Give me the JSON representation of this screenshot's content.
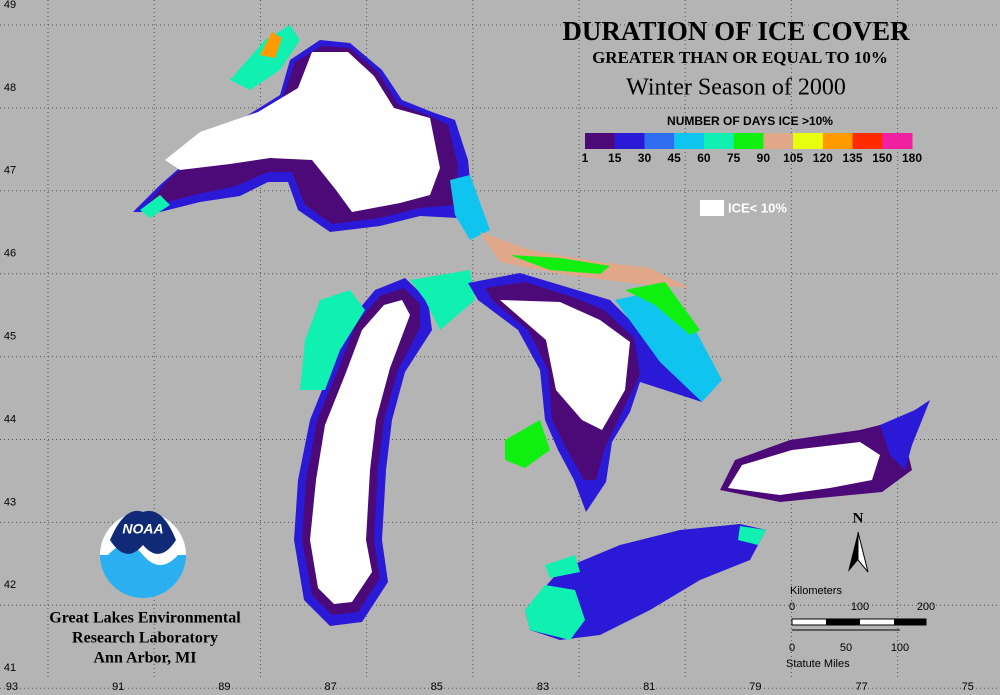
{
  "header": {
    "title": "DURATION OF ICE COVER",
    "subtitle": "GREATER THAN OR EQUAL TO 10%",
    "season": "Winter Season of 2000"
  },
  "legend": {
    "title": "NUMBER OF DAYS ICE >10%",
    "labels": [
      "1",
      "15",
      "30",
      "45",
      "60",
      "75",
      "90",
      "105",
      "120",
      "135",
      "150",
      "180"
    ],
    "colors": [
      "#4b0a78",
      "#2a1ad8",
      "#2f6ef0",
      "#10c4f0",
      "#10f0b0",
      "#10f010",
      "#e0a888",
      "#e8ff10",
      "#ff9a00",
      "#ff2a00",
      "#f020a0"
    ],
    "ice_label": "ICE< 10%"
  },
  "axes": {
    "longitude_labels": [
      "93",
      "91",
      "89",
      "87",
      "85",
      "83",
      "81",
      "79",
      "77",
      "75"
    ],
    "latitude_labels": [
      "49",
      "48",
      "47",
      "46",
      "45",
      "44",
      "43",
      "42",
      "41"
    ]
  },
  "attribution": {
    "logo": "NOAA",
    "lines": [
      "Great Lakes Environmental",
      "Research Laboratory",
      "Ann Arbor, MI"
    ]
  },
  "scale": {
    "km_title": "Kilometers",
    "km_labels": [
      "0",
      "100",
      "200"
    ],
    "mi_title": "Statute Miles",
    "mi_labels": [
      "0",
      "50",
      "100"
    ]
  },
  "north": "N"
}
